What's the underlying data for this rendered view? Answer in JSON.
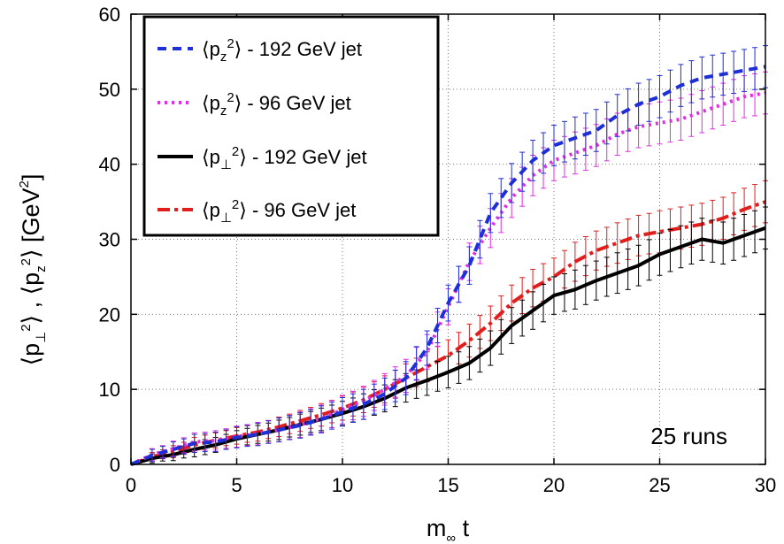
{
  "chart_data": {
    "type": "line",
    "title": "",
    "xlabel": "m∞ t",
    "ylabel": "⟨p⊥²⟩ , ⟨pz²⟩  [GeV²]",
    "xlim": [
      0,
      30
    ],
    "ylim": [
      0,
      60
    ],
    "xticks": [
      "0",
      "5",
      "10",
      "15",
      "20",
      "25",
      "30"
    ],
    "yticks": [
      "0",
      "10",
      "20",
      "30",
      "40",
      "50",
      "60"
    ],
    "grid": true,
    "legend_position": "top-left",
    "annotation": "25 runs",
    "x": [
      0,
      1,
      2,
      3,
      4,
      5,
      6,
      7,
      8,
      9,
      10,
      11,
      12,
      13,
      14,
      15,
      16,
      17,
      18,
      19,
      20,
      21,
      22,
      23,
      24,
      25,
      26,
      27,
      28,
      29,
      30
    ],
    "series": [
      {
        "name": "⟨pz²⟩ - 192 GeV jet",
        "color": "#1f2fd6",
        "dash": "dashed",
        "values": [
          0,
          1.2,
          2.0,
          2.8,
          3.0,
          3.6,
          4.0,
          4.6,
          5.2,
          6.0,
          7.0,
          8.0,
          9.4,
          11.5,
          15.5,
          21.5,
          26.5,
          33.5,
          37.5,
          40.5,
          42.5,
          43.5,
          44.5,
          46.5,
          48.0,
          49.0,
          50.5,
          51.5,
          52.0,
          52.5,
          53.0
        ],
        "errors": [
          0,
          0.8,
          1.0,
          1.2,
          1.3,
          1.4,
          1.5,
          1.6,
          1.7,
          1.8,
          1.9,
          2.0,
          2.1,
          2.2,
          2.3,
          2.4,
          2.5,
          2.6,
          2.6,
          2.7,
          2.7,
          2.8,
          2.8,
          2.8,
          2.8,
          2.8,
          2.8,
          2.8,
          2.8,
          2.8,
          2.8
        ]
      },
      {
        "name": "⟨pz²⟩ - 96 GeV jet",
        "color": "#e02fe0",
        "dash": "dotted",
        "values": [
          0,
          1.3,
          2.1,
          3.0,
          3.2,
          3.7,
          4.1,
          4.6,
          5.3,
          6.1,
          7.3,
          8.4,
          10.0,
          11.8,
          15.0,
          21.0,
          27.0,
          31.5,
          35.5,
          38.5,
          40.5,
          41.5,
          42.5,
          44.0,
          45.0,
          45.5,
          46.0,
          47.0,
          48.0,
          49.0,
          49.5
        ],
        "errors": [
          0,
          0.8,
          1.0,
          1.2,
          1.3,
          1.4,
          1.5,
          1.6,
          1.7,
          1.8,
          1.9,
          2.0,
          2.1,
          2.2,
          2.3,
          2.4,
          2.5,
          2.6,
          2.6,
          2.7,
          2.7,
          2.8,
          2.8,
          2.8,
          2.8,
          2.8,
          2.8,
          2.8,
          2.8,
          2.8,
          2.8
        ]
      },
      {
        "name": "⟨p⊥²⟩ - 192 GeV jet",
        "color": "#000000",
        "dash": "solid",
        "values": [
          0,
          0.8,
          1.3,
          2.0,
          2.6,
          3.4,
          4.0,
          4.6,
          5.3,
          6.0,
          6.8,
          7.7,
          8.8,
          10.2,
          11.2,
          12.3,
          13.5,
          15.5,
          18.5,
          20.5,
          22.5,
          23.3,
          24.5,
          25.5,
          26.5,
          28.0,
          29.0,
          30.0,
          29.5,
          30.5,
          31.5
        ],
        "errors": [
          0,
          0.6,
          0.8,
          1.0,
          1.0,
          1.1,
          1.2,
          1.3,
          1.4,
          1.5,
          1.6,
          1.7,
          1.8,
          1.9,
          2.0,
          2.1,
          2.2,
          2.3,
          2.4,
          2.5,
          2.5,
          2.6,
          2.6,
          2.7,
          2.7,
          2.8,
          2.8,
          2.8,
          2.8,
          2.8,
          2.8
        ]
      },
      {
        "name": "⟨p⊥²⟩ - 96 GeV jet",
        "color": "#e01e1e",
        "dash": "dash-dot",
        "values": [
          0,
          1.0,
          1.7,
          2.6,
          3.2,
          3.8,
          4.3,
          5.0,
          5.8,
          6.6,
          7.5,
          8.6,
          10.0,
          11.5,
          13.0,
          14.5,
          16.5,
          18.8,
          21.5,
          23.5,
          25.0,
          27.0,
          28.5,
          29.5,
          30.5,
          31.0,
          31.5,
          32.0,
          32.8,
          34.0,
          35.0
        ],
        "errors": [
          0,
          0.6,
          0.8,
          1.0,
          1.0,
          1.1,
          1.2,
          1.3,
          1.4,
          1.5,
          1.6,
          1.7,
          1.8,
          1.9,
          2.0,
          2.1,
          2.2,
          2.3,
          2.4,
          2.5,
          2.5,
          2.6,
          2.6,
          2.7,
          2.7,
          2.8,
          2.8,
          2.8,
          2.8,
          2.8,
          2.8
        ]
      }
    ]
  }
}
